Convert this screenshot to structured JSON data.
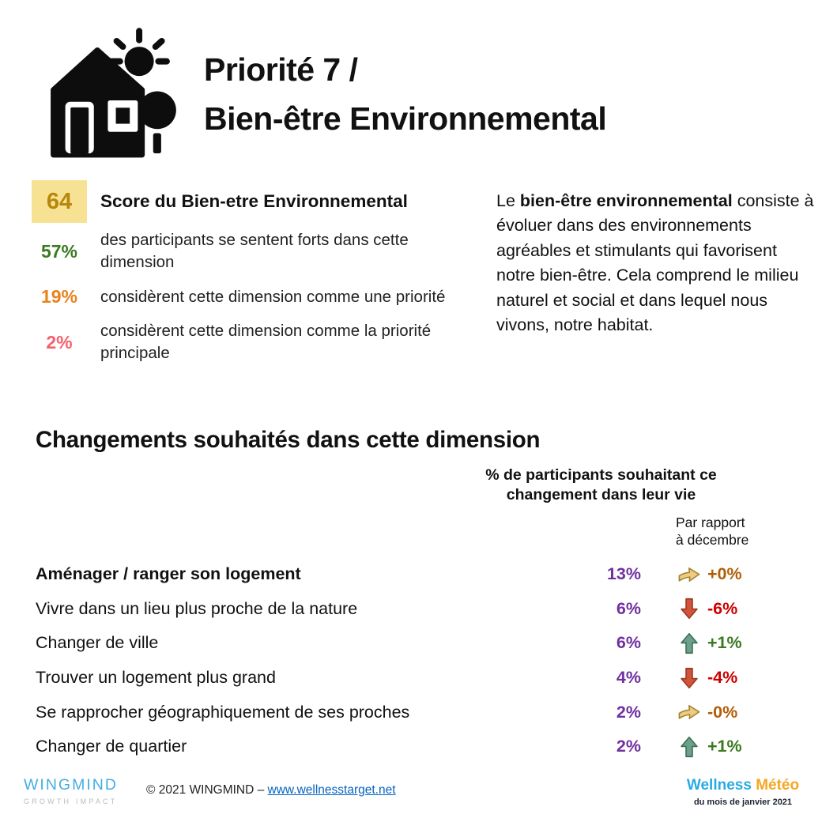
{
  "header": {
    "icon": "house-sun-tree-icon",
    "title_line1": "Priorité 7 /",
    "title_line2": "Bien-être Environnemental"
  },
  "score": {
    "value": "64",
    "label": "Score du Bien-etre Environnemental",
    "stats": [
      {
        "value": "57%",
        "color": "#3A7A21",
        "text": "des participants se sentent forts dans cette dimension"
      },
      {
        "value": "19%",
        "color": "#E8821E",
        "text": "considèrent cette dimension comme une priorité"
      },
      {
        "value": "2%",
        "color": "#F4606C",
        "text": "considèrent cette dimension comme la priorité principale"
      }
    ]
  },
  "description": {
    "lead": "Le ",
    "bold_text": "bien-être environnemental",
    "rest": " consiste à évoluer dans des environnements agréables et stimulants qui favorisent notre bien-être. Cela comprend le milieu naturel et social et dans lequel nous vivons, notre habitat."
  },
  "changes": {
    "title": "Changements souhaités dans cette dimension",
    "percent_header": "% de participants souhaitant ce changement dans leur vie",
    "delta_header_line1": "Par rapport",
    "delta_header_line2": "à décembre",
    "rows": [
      {
        "label": "Aménager / ranger son logement",
        "bold": true,
        "percent": "13%",
        "direction": "right",
        "delta": "+0%"
      },
      {
        "label": "Vivre dans un lieu plus proche de la nature",
        "bold": false,
        "percent": "6%",
        "direction": "down",
        "delta": "-6%"
      },
      {
        "label": "Changer de ville",
        "bold": false,
        "percent": "6%",
        "direction": "up",
        "delta": "+1%"
      },
      {
        "label": "Trouver un logement plus grand",
        "bold": false,
        "percent": "4%",
        "direction": "down",
        "delta": "-4%"
      },
      {
        "label": "Se rapprocher géographiquement de ses proches",
        "bold": false,
        "percent": "2%",
        "direction": "right",
        "delta": "-0%"
      },
      {
        "label": "Changer de quartier",
        "bold": false,
        "percent": "2%",
        "direction": "up",
        "delta": "+1%"
      }
    ]
  },
  "footer": {
    "logo_main": "WINGMIND",
    "logo_sub": "GROWTH IMPACT",
    "copyright_prefix": "© 2021 WINGMIND  – ",
    "link": "www.wellnesstarget.net",
    "meteo_word1": "Wellness",
    "meteo_word2": " Météo",
    "meteo_sub": "du mois de janvier 2021"
  },
  "colors": {
    "score_box_bg": "#F7E294",
    "score_value": "#B8860B",
    "percent": "#7030A0",
    "delta": {
      "right": "#B05E08",
      "down": "#CC0000",
      "up": "#3A7A21"
    },
    "arrow_fill": {
      "right": "#EDCB80",
      "down": "#D1543A",
      "up": "#6BA18A"
    },
    "arrow_stroke": {
      "right": "#A3802F",
      "down": "#9C3A22",
      "up": "#3D7156"
    },
    "logo_main": "#45AEE0",
    "logo_sub": "#B6BCC2",
    "link": "#0563C1",
    "meteo_word1": "#29ABE2",
    "meteo_word2": "#F5A623"
  }
}
